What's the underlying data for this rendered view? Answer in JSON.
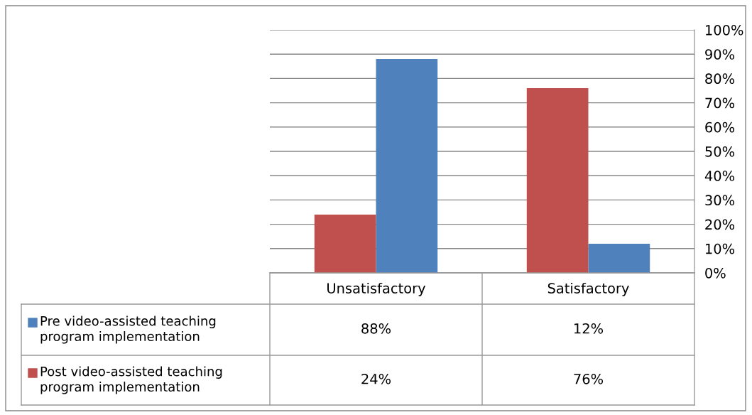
{
  "chart_data": {
    "type": "bar",
    "categories": [
      "Unsatisfactory",
      "Satisfactory"
    ],
    "series": [
      {
        "name": "Pre video-assisted teaching program implementation",
        "color": "#4f81bd",
        "values": [
          88,
          12
        ],
        "value_labels": [
          "88%",
          "12%"
        ]
      },
      {
        "name": "Post video-assisted teaching program implementation",
        "color": "#c0504d",
        "values": [
          24,
          76
        ],
        "value_labels": [
          "24%",
          "76%"
        ]
      }
    ],
    "ylim": [
      0,
      100
    ],
    "yticks": [
      {
        "value": 0,
        "label": "0%"
      },
      {
        "value": 10,
        "label": "10%"
      },
      {
        "value": 20,
        "label": "20%"
      },
      {
        "value": 30,
        "label": "30%"
      },
      {
        "value": 40,
        "label": "40%"
      },
      {
        "value": 50,
        "label": "50%"
      },
      {
        "value": 60,
        "label": "60%"
      },
      {
        "value": 70,
        "label": "70%"
      },
      {
        "value": 80,
        "label": "80%"
      },
      {
        "value": 90,
        "label": "90%"
      },
      {
        "value": 100,
        "label": "100%"
      }
    ],
    "grid": "y",
    "legend": "bottom left"
  }
}
